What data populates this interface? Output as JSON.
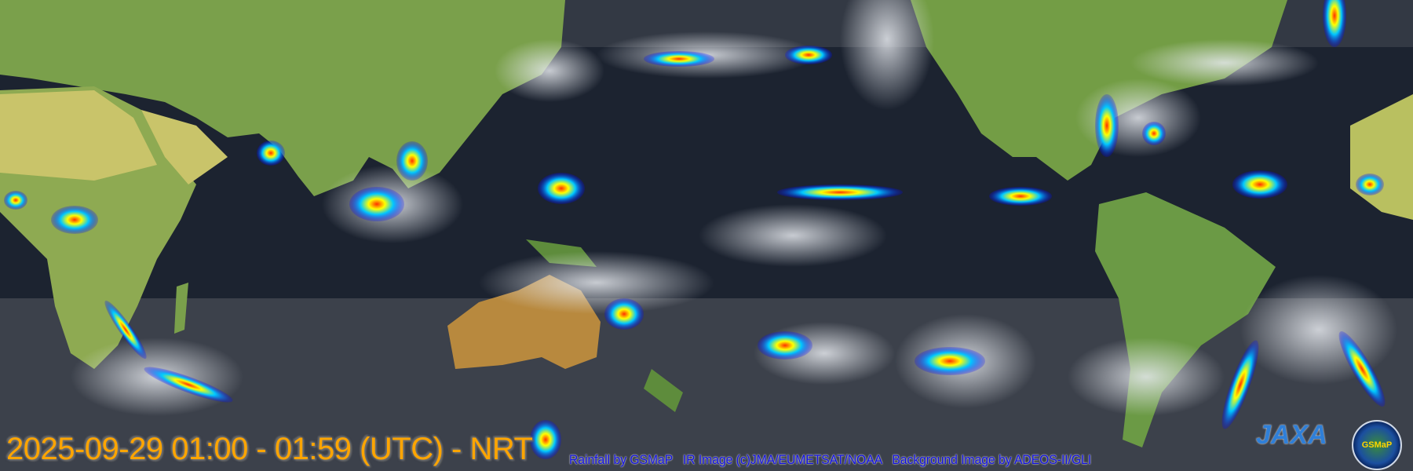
{
  "map": {
    "timestamp": "2025-09-29 01:00 - 01:59 (UTC) - NRT",
    "credits": "Rainfall by GSMaP   IR Image (c)JMA/EUMETSAT/NOAA   Background Image by ADEOS-II/GLI",
    "logos": {
      "jaxa": "JAXA",
      "gsmap": "GSMaP"
    },
    "colors": {
      "ocean": "#1c2330",
      "land": "#6f9a45",
      "desert": "#c9c46a",
      "cloud": "#d8dde4",
      "timestamp": "#ffa500",
      "credits": "#1010e0"
    },
    "rain_scale_colors": [
      "#0000ff",
      "#00a0ff",
      "#00e0a0",
      "#ffff00",
      "#ff8000",
      "#ff0000"
    ]
  }
}
